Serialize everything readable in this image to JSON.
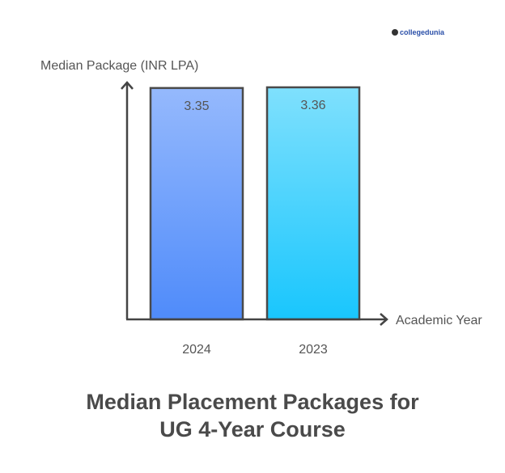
{
  "logo": {
    "text": "collegedunia"
  },
  "chart_data": {
    "type": "bar",
    "title": "Median Placement Packages for UG 4-Year Course",
    "title_lines": [
      "Median Placement Packages for",
      "UG 4-Year Course"
    ],
    "ylabel": "Median Package (INR LPA)",
    "xlabel": "Academic Year",
    "categories": [
      "2024",
      "2023"
    ],
    "values": [
      3.35,
      3.36
    ],
    "data_labels": [
      "3.35",
      "3.36"
    ],
    "ylim": [
      0,
      3.36
    ],
    "grid": false,
    "colors": [
      [
        "#95b9fd",
        "#4f8bfa"
      ],
      [
        "#7fe0fd",
        "#19c6fd"
      ]
    ]
  }
}
